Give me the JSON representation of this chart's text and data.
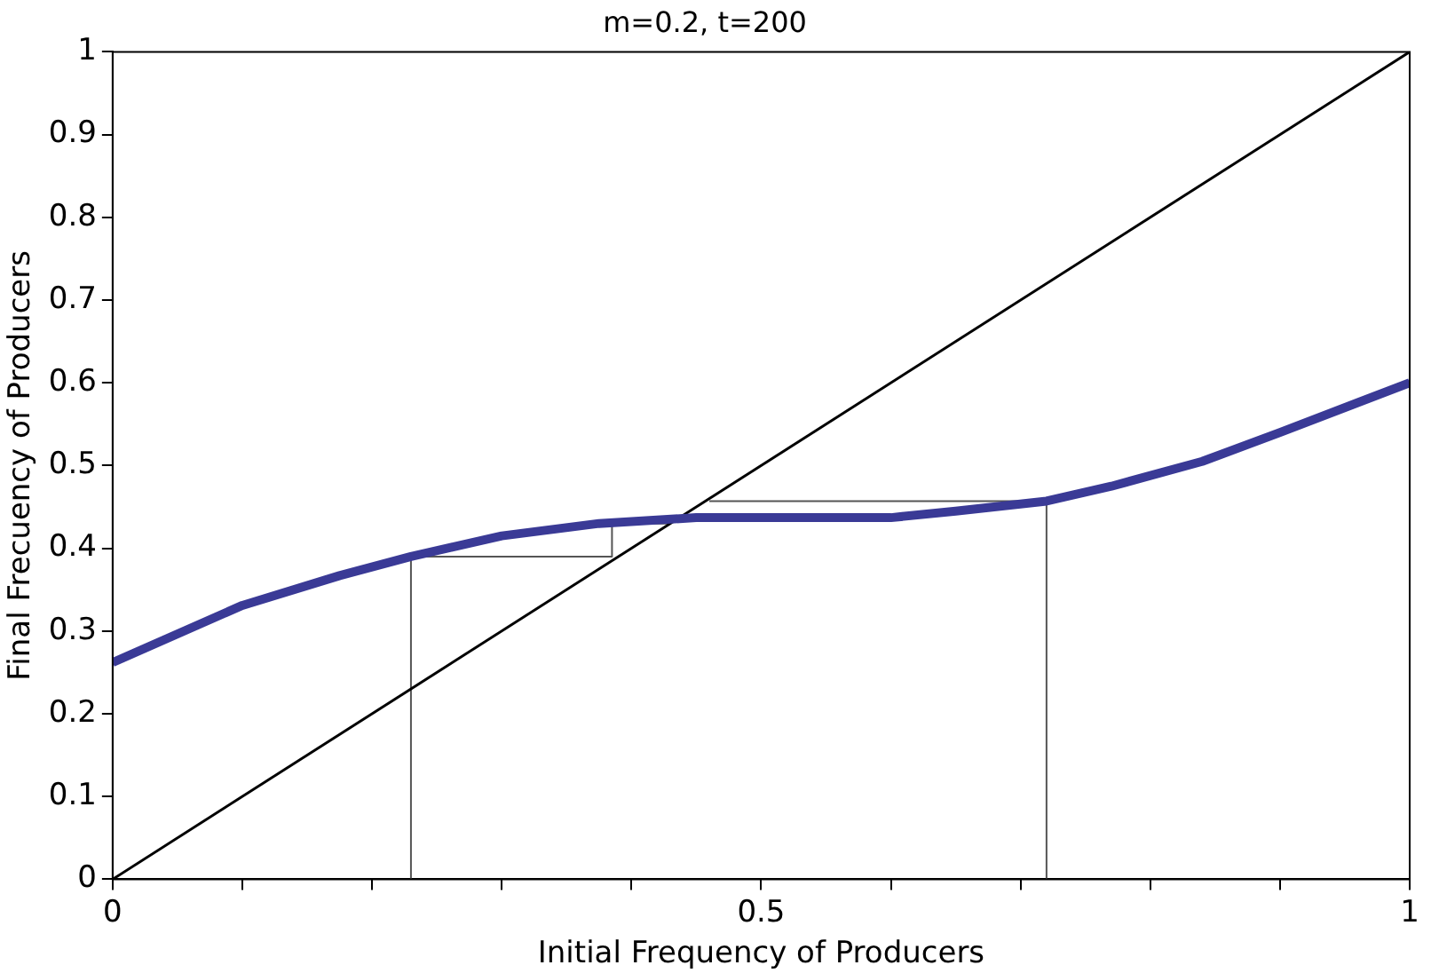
{
  "chart_data": {
    "type": "line",
    "title": "m=0.2, t=200",
    "xlabel": "Initial Frequency of Producers",
    "ylabel": "Final Frecuency of Producers",
    "series": [
      {
        "color": "#3a3a96",
        "x": [
          0,
          0.1,
          0.175,
          0.23,
          0.3,
          0.375,
          0.45,
          0.6,
          0.65,
          0.72,
          0.77,
          0.84,
          0.9,
          1
        ],
        "values": [
          0.262,
          0.331,
          0.367,
          0.39,
          0.415,
          0.43,
          0.437,
          0.437,
          0.445,
          0.457,
          0.475,
          0.505,
          0.54,
          0.6
        ]
      },
      {
        "color": "#000000",
        "x": [
          0,
          1
        ],
        "values": [
          0,
          1
        ]
      },
      {
        "color": "#555555",
        "x": [
          0.23,
          0.23,
          0.385,
          0.385,
          0.43
        ],
        "values": [
          0,
          0.39,
          0.39,
          0.43,
          0.43
        ]
      },
      {
        "color": "#555555",
        "x": [
          0.72,
          0.72,
          0.46
        ],
        "values": [
          0,
          0.457,
          0.457
        ]
      }
    ],
    "xlim": [
      0,
      1
    ],
    "ylim": [
      0,
      1
    ],
    "xticks": [
      0,
      {
        "value": 0.1,
        "label": null
      },
      {
        "value": 0.2,
        "label": null
      },
      {
        "value": 0.3,
        "label": null
      },
      {
        "value": 0.4,
        "label": null
      },
      0.5,
      {
        "value": 0.6,
        "label": null
      },
      {
        "value": 0.7,
        "label": null
      },
      {
        "value": 0.8,
        "label": null
      },
      {
        "value": 0.9,
        "label": null
      },
      1
    ],
    "yticks": [
      0,
      0.1,
      0.2,
      0.3,
      0.4,
      0.5,
      0.6,
      0.7,
      0.8,
      0.9,
      1
    ],
    "grid": false,
    "legend": false,
    "marker": "none",
    "line_style": "solid"
  }
}
